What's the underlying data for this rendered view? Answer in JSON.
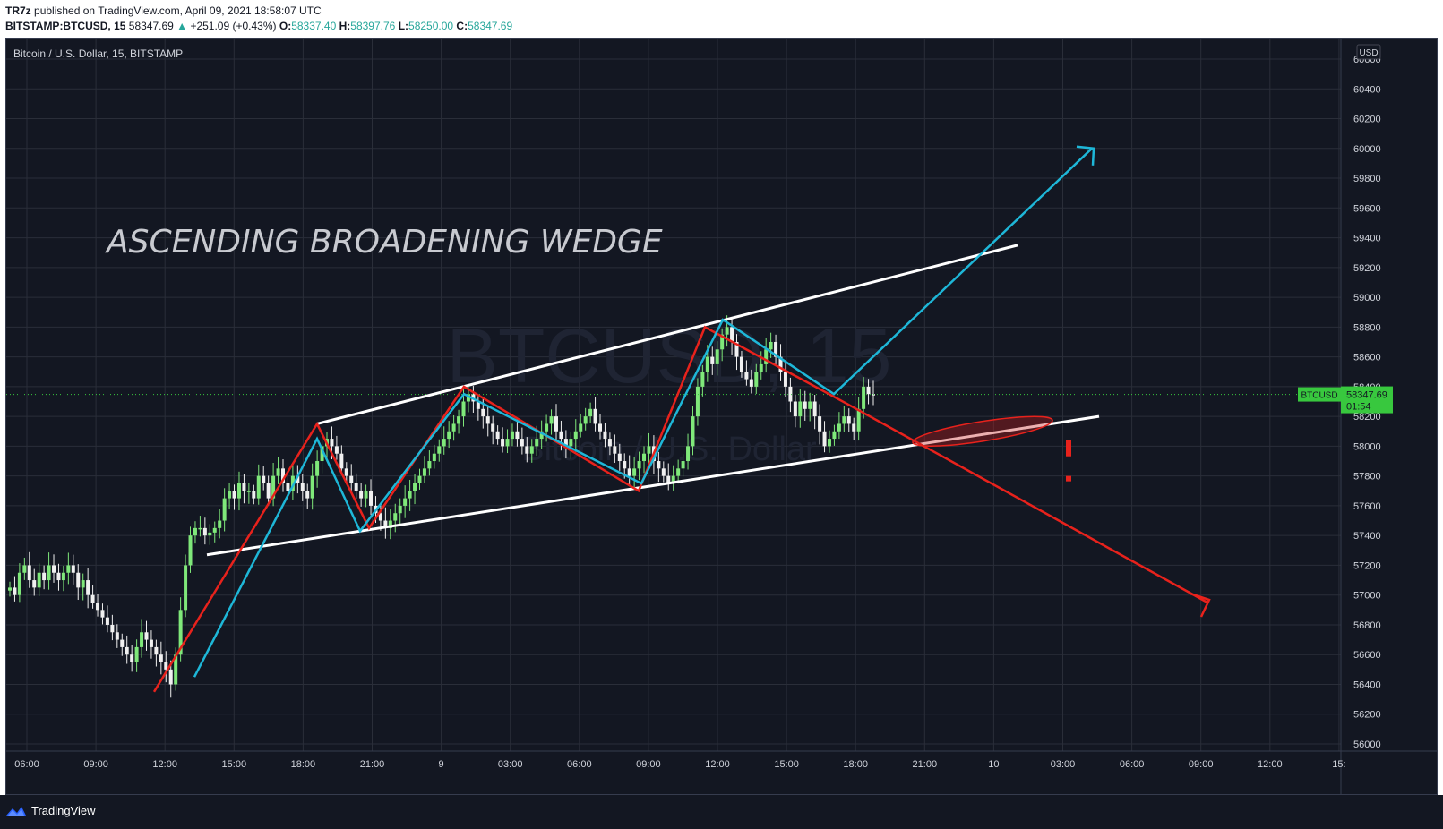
{
  "header": {
    "publisher": "TR7z",
    "published_text": "published on TradingView.com, April 09, 2021 18:58:07 UTC",
    "symbol": "BITSTAMP:BTCUSD, 15",
    "last": "58347.69",
    "change_arrow": "▲",
    "change": "+251.09 (+0.43%)",
    "o_label": "O:",
    "o": "58337.40",
    "h_label": "H:",
    "h": "58397.76",
    "l_label": "L:",
    "l": "58250.00",
    "c_label": "C:",
    "c": "58347.69"
  },
  "chart_data": {
    "type": "candlestick",
    "title": "Bitcoin / U.S. Dollar, 15, BITSTAMP",
    "annotation": "ASCENDING BROADENING WEDGE",
    "watermark": [
      "BTCUSD, 15",
      "Bitcoin / U.S. Dollar"
    ],
    "currency": "USD",
    "y_ticks": [
      56000,
      56200,
      56400,
      56600,
      56800,
      57000,
      57200,
      57400,
      57600,
      57800,
      58000,
      58200,
      58400,
      58600,
      58800,
      59000,
      59200,
      59400,
      59600,
      59800,
      60000,
      60200,
      60400,
      60600
    ],
    "x_ticks": [
      "06:00",
      "09:00",
      "12:00",
      "15:00",
      "18:00",
      "21:00",
      "9",
      "03:00",
      "06:00",
      "09:00",
      "12:00",
      "15:00",
      "18:00",
      "21:00",
      "10",
      "03:00",
      "06:00",
      "09:00",
      "12:00",
      "15:"
    ],
    "ylim": [
      56000,
      60600
    ],
    "grid": true,
    "price_label": {
      "symbol": "BTCUSD",
      "price": "58347.69",
      "countdown": "01:54"
    },
    "colors": {
      "up": "#7fe87a",
      "down": "#f0f0f0",
      "background": "#131722",
      "grid": "#2a2e39",
      "wedge": "#ffffff",
      "red_path": "#e8221c",
      "blue_path": "#1eb7d8",
      "price": "#38c83e"
    },
    "candles_close": [
      57050,
      57000,
      57150,
      57200,
      57100,
      57050,
      57150,
      57100,
      57200,
      57150,
      57100,
      57150,
      57200,
      57150,
      57050,
      57100,
      57000,
      56950,
      56900,
      56850,
      56800,
      56750,
      56700,
      56650,
      56600,
      56550,
      56650,
      56750,
      56700,
      56650,
      56600,
      56550,
      56500,
      56400,
      56600,
      56900,
      57200,
      57400,
      57450,
      57450,
      57400,
      57420,
      57450,
      57500,
      57650,
      57700,
      57650,
      57750,
      57700,
      57700,
      57650,
      57800,
      57750,
      57650,
      57800,
      57850,
      57750,
      57700,
      57800,
      57750,
      57700,
      57650,
      57800,
      57900,
      58000,
      58050,
      58000,
      57950,
      57850,
      57800,
      57750,
      57700,
      57650,
      57700,
      57600,
      57550,
      57500,
      57450,
      57500,
      57550,
      57600,
      57650,
      57700,
      57750,
      57800,
      57850,
      57900,
      57950,
      58000,
      58050,
      58100,
      58150,
      58200,
      58300,
      58350,
      58300,
      58250,
      58200,
      58150,
      58100,
      58050,
      58000,
      58050,
      58100,
      58050,
      58000,
      57950,
      58000,
      58050,
      58100,
      58150,
      58200,
      58100,
      58050,
      58000,
      58050,
      58100,
      58150,
      58200,
      58250,
      58150,
      58100,
      58050,
      58000,
      57950,
      57900,
      57850,
      57800,
      57850,
      57900,
      57950,
      58000,
      57900,
      57850,
      57800,
      57750,
      57800,
      57850,
      57900,
      58000,
      58200,
      58400,
      58500,
      58600,
      58550,
      58650,
      58750,
      58800,
      58700,
      58600,
      58500,
      58450,
      58400,
      58500,
      58550,
      58650,
      58700,
      58600,
      58500,
      58400,
      58300,
      58200,
      58300,
      58250,
      58300,
      58200,
      58100,
      58000,
      58050,
      58100,
      58150,
      58200,
      58150,
      58100,
      58250,
      58400,
      58350,
      58347
    ]
  },
  "logo": {
    "text": "TradingView",
    "icon": "tradingview-logo-icon"
  }
}
